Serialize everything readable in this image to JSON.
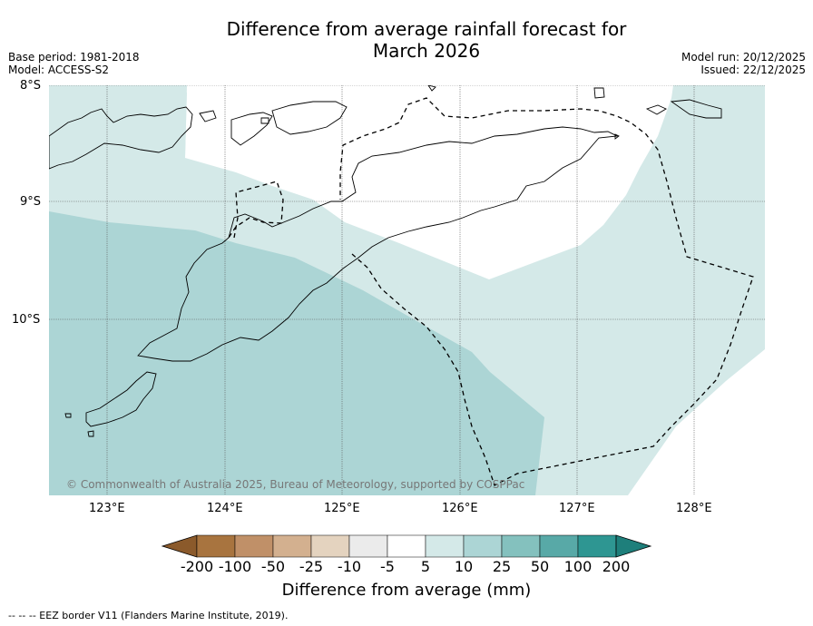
{
  "title_line1": "Difference from average rainfall forecast for",
  "title_line2": "March 2026",
  "base_period": "Base period: 1981-2018",
  "model": "Model: ACCESS-S2",
  "model_run": "Model run: 20/12/2025",
  "issued": "Issued: 22/12/2025",
  "lat_labels": [
    "8°S",
    "9°S",
    "10°S"
  ],
  "lon_labels": [
    "123°E",
    "124°E",
    "125°E",
    "126°E",
    "127°E",
    "128°E"
  ],
  "copyright": "© Commonwealth of Australia 2025, Bureau of Meteorology, supported by COSPPac",
  "colorbar": {
    "ticks": [
      "-200",
      "-100",
      "-50",
      "-25",
      "-10",
      "-5",
      "5",
      "10",
      "25",
      "50",
      "100",
      "200"
    ],
    "colors": [
      "#8b5a2b",
      "#a8743f",
      "#c09068",
      "#d3b08f",
      "#e4d3bf",
      "#ebebeb",
      "#ffffff",
      "#d4e9e8",
      "#acd5d5",
      "#84c1be",
      "#58a9a7",
      "#2e9692",
      "#1e7f7b"
    ],
    "title": "Difference from average (mm)"
  },
  "eez_note": "--  --  -- EEZ border V11 (Flanders Marine Institute, 2019).",
  "map_colors": {
    "light": "#d4e9e8",
    "medium": "#acd5d5",
    "white": "#ffffff"
  }
}
